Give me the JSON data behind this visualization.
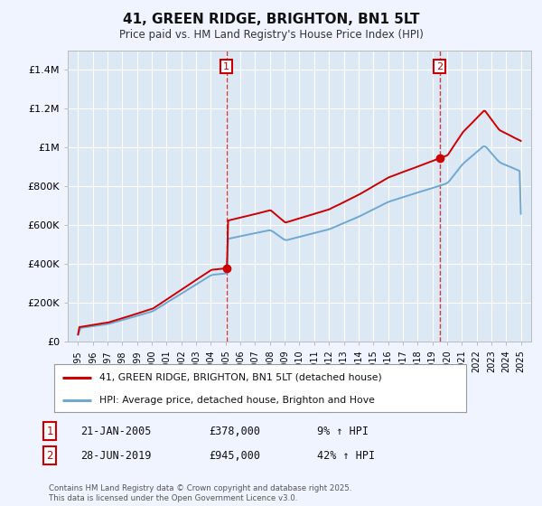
{
  "title": "41, GREEN RIDGE, BRIGHTON, BN1 5LT",
  "subtitle": "Price paid vs. HM Land Registry's House Price Index (HPI)",
  "background_color": "#f0f4ff",
  "plot_background": "#dde8f5",
  "ylim": [
    0,
    1500000
  ],
  "yticks": [
    0,
    200000,
    400000,
    600000,
    800000,
    1000000,
    1200000,
    1400000
  ],
  "ytick_labels": [
    "£0",
    "£200K",
    "£400K",
    "£600K",
    "£800K",
    "£1M",
    "£1.2M",
    "£1.4M"
  ],
  "xstart_year": 1995,
  "xend_year": 2025,
  "vline1_year": 2005.05,
  "vline2_year": 2019.49,
  "marker1": {
    "year": 2005.05,
    "value": 378000
  },
  "marker2": {
    "year": 2019.49,
    "value": 945000
  },
  "red_line_color": "#cc0000",
  "blue_line_color": "#6fa8d0",
  "vline_color": "#cc0000",
  "legend_label_red": "41, GREEN RIDGE, BRIGHTON, BN1 5LT (detached house)",
  "legend_label_blue": "HPI: Average price, detached house, Brighton and Hove",
  "table_row1": [
    "1",
    "21-JAN-2005",
    "£378,000",
    "9% ↑ HPI"
  ],
  "table_row2": [
    "2",
    "28-JUN-2019",
    "£945,000",
    "42% ↑ HPI"
  ],
  "footer": "Contains HM Land Registry data © Crown copyright and database right 2025.\nThis data is licensed under the Open Government Licence v3.0.",
  "font_family": "DejaVu Sans Mono"
}
